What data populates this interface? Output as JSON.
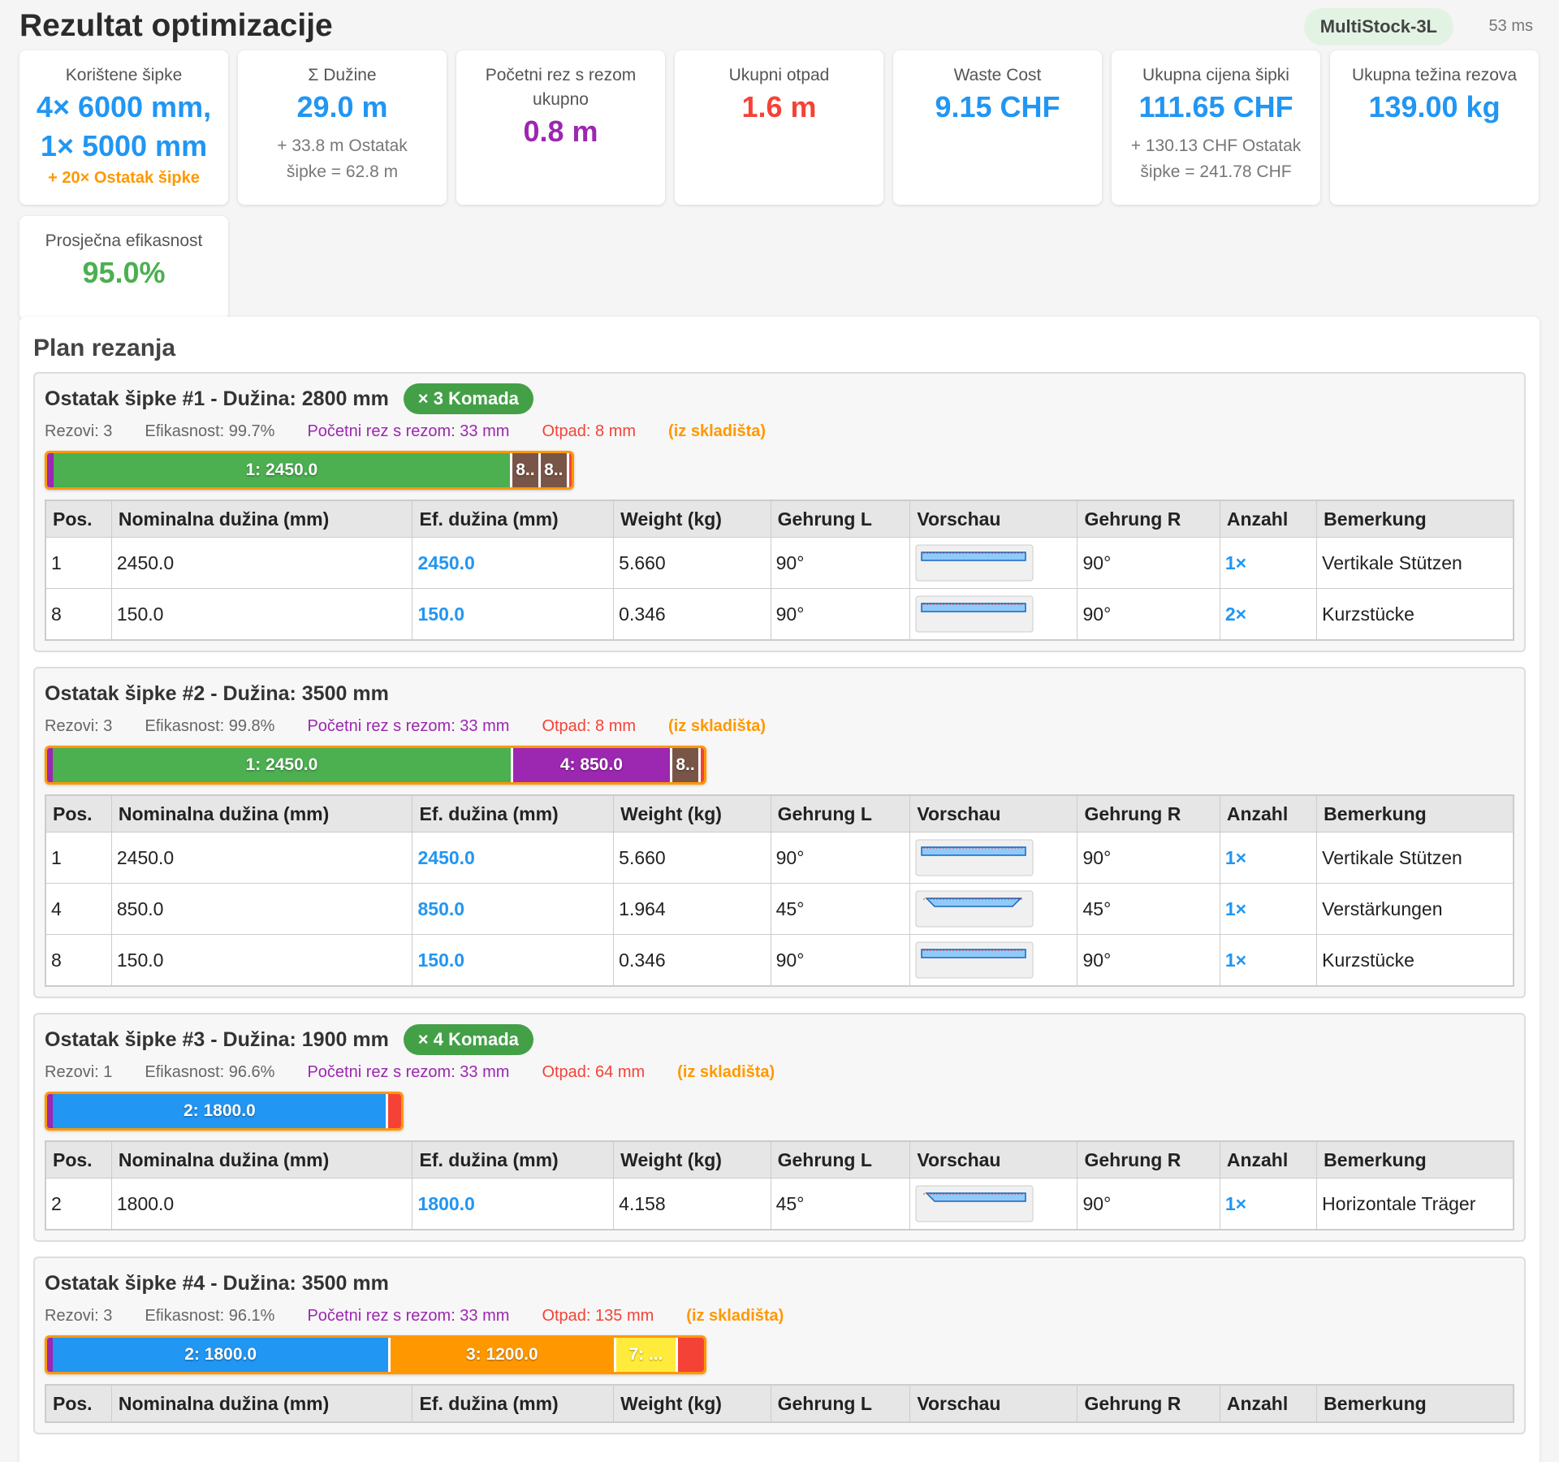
{
  "header": {
    "title": "Rezultat optimizacije",
    "algorithm": "MultiStock-3L",
    "time": "53 ms"
  },
  "cards": [
    {
      "label": "Korištene šipke",
      "value_lines": [
        "4× 6000 mm,",
        "1× 5000 mm"
      ],
      "note": "+ 20× Ostatak šipke"
    },
    {
      "label": "Σ Dužine",
      "value_lines": [
        "29.0 m"
      ],
      "sub": "+ 33.8 m Ostatak šipke = 62.8 m"
    },
    {
      "label": "Početni rez s rezom ukupno",
      "value_lines": [
        "0.8 m"
      ]
    },
    {
      "label": "Ukupni otpad",
      "value_lines": [
        "1.6 m"
      ]
    },
    {
      "label": "Waste Cost",
      "value_lines": [
        "9.15 CHF"
      ]
    },
    {
      "label": "Ukupna cijena šipki",
      "value_lines": [
        "111.65 CHF"
      ],
      "sub": "+ 130.13 CHF Ostatak šipke = 241.78 CHF"
    },
    {
      "label": "Ukupna težina rezova",
      "value_lines": [
        "139.00 kg"
      ]
    },
    {
      "label": "Prosječna efikasnost",
      "value_lines": [
        "95.0%"
      ]
    }
  ],
  "plan": {
    "title": "Plan rezanja",
    "columns": [
      "Pos.",
      "Nominalna dužina (mm)",
      "Ef. dužina (mm)",
      "Weight (kg)",
      "Gehrung L",
      "Vorschau",
      "Gehrung R",
      "Anzahl",
      "Bemerkung"
    ],
    "stocks": [
      {
        "title": "Ostatak šipke #1 - Dužina: 2800 mm",
        "badge": "× 3 Komada",
        "cuts": "Rezovi: 3",
        "efficiency": "Efikasnost: 99.7%",
        "initial_cut": "Početni rez s rezom: 33 mm",
        "waste": "Otpad: 8 mm",
        "source": "(iz skladišta)",
        "segments": [
          "1: 2450.0",
          "8..",
          "8.."
        ],
        "rows": [
          {
            "pos": "1",
            "nominal": "2450.0",
            "effective": "2450.0",
            "weight": "5.660",
            "miter_l": "90°",
            "miter_r": "90°",
            "qty": "1×",
            "note": "Vertikale Stützen"
          },
          {
            "pos": "8",
            "nominal": "150.0",
            "effective": "150.0",
            "weight": "0.346",
            "miter_l": "90°",
            "miter_r": "90°",
            "qty": "2×",
            "note": "Kurzstücke"
          }
        ]
      },
      {
        "title": "Ostatak šipke #2 - Dužina: 3500 mm",
        "cuts": "Rezovi: 3",
        "efficiency": "Efikasnost: 99.8%",
        "initial_cut": "Početni rez s rezom: 33 mm",
        "waste": "Otpad: 8 mm",
        "source": "(iz skladišta)",
        "segments": [
          "1: 2450.0",
          "4: 850.0",
          "8.."
        ],
        "rows": [
          {
            "pos": "1",
            "nominal": "2450.0",
            "effective": "2450.0",
            "weight": "5.660",
            "miter_l": "90°",
            "miter_r": "90°",
            "qty": "1×",
            "note": "Vertikale Stützen"
          },
          {
            "pos": "4",
            "nominal": "850.0",
            "effective": "850.0",
            "weight": "1.964",
            "miter_l": "45°",
            "miter_r": "45°",
            "qty": "1×",
            "note": "Verstärkungen"
          },
          {
            "pos": "8",
            "nominal": "150.0",
            "effective": "150.0",
            "weight": "0.346",
            "miter_l": "90°",
            "miter_r": "90°",
            "qty": "1×",
            "note": "Kurzstücke"
          }
        ]
      },
      {
        "title": "Ostatak šipke #3 - Dužina: 1900 mm",
        "badge": "× 4 Komada",
        "cuts": "Rezovi: 1",
        "efficiency": "Efikasnost: 96.6%",
        "initial_cut": "Početni rez s rezom: 33 mm",
        "waste": "Otpad: 64 mm",
        "source": "(iz skladišta)",
        "segments": [
          "2: 1800.0"
        ],
        "rows": [
          {
            "pos": "2",
            "nominal": "1800.0",
            "effective": "1800.0",
            "weight": "4.158",
            "miter_l": "45°",
            "miter_r": "90°",
            "qty": "1×",
            "note": "Horizontale Träger"
          }
        ]
      },
      {
        "title": "Ostatak šipke #4 - Dužina: 3500 mm",
        "cuts": "Rezovi: 3",
        "efficiency": "Efikasnost: 96.1%",
        "initial_cut": "Početni rez s rezom: 33 mm",
        "waste": "Otpad: 135 mm",
        "source": "(iz skladišta)",
        "segments": [
          "2: 1800.0",
          "3: 1200.0",
          "7: ..."
        ],
        "rows": []
      }
    ]
  }
}
